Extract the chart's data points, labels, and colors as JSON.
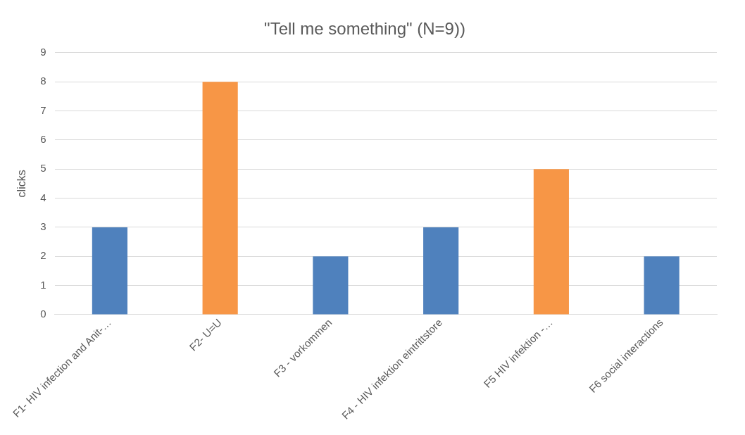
{
  "chart_data": {
    "type": "bar",
    "title": "\"Tell me something\" (N=9))",
    "ylabel": "clicks",
    "categories": [
      "F1- HIV infection and Anit-…",
      "F2- U=U",
      "F3 - vorkommen",
      "F4 - HIV infektion eintrittstore",
      "F5 HIV infektion -…",
      "F6 social interactions"
    ],
    "values": [
      3,
      8,
      2,
      3,
      5,
      2
    ],
    "colors": [
      "#4f81bd",
      "#f79646",
      "#4f81bd",
      "#4f81bd",
      "#f79646",
      "#4f81bd"
    ],
    "ylim": [
      0,
      9
    ],
    "yticks": [
      0,
      1,
      2,
      3,
      4,
      5,
      6,
      7,
      8,
      9
    ],
    "grid": "y"
  }
}
